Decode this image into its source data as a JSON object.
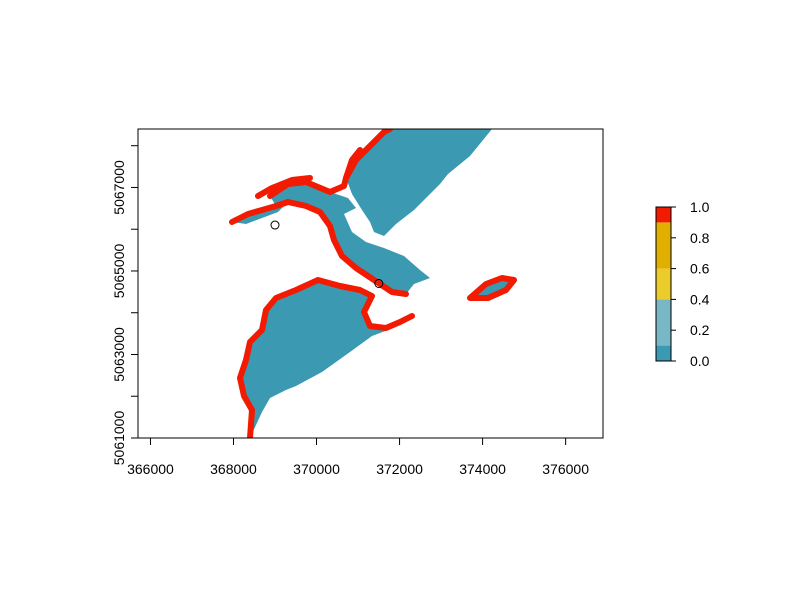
{
  "chart_data": {
    "type": "heatmap",
    "title": "",
    "xlabel": "",
    "ylabel": "",
    "xlim": [
      365700,
      376900
    ],
    "ylim": [
      5061000,
      5068400
    ],
    "x_ticks": [
      366000,
      368000,
      370000,
      372000,
      374000,
      376000
    ],
    "x_tick_labels": [
      "366000",
      "368000",
      "370000",
      "372000",
      "374000",
      "376000"
    ],
    "y_ticks": [
      5061000,
      5062000,
      5063000,
      5064000,
      5065000,
      5066000,
      5067000,
      5068000
    ],
    "y_tick_labels": [
      "5061000",
      "",
      "5063000",
      "",
      "5065000",
      "",
      "5067000",
      ""
    ],
    "grid": false,
    "legend": {
      "placement": "right",
      "range": [
        0.0,
        1.0
      ],
      "ticks": [
        0.0,
        0.2,
        0.4,
        0.6,
        0.8,
        1.0
      ],
      "tick_labels": [
        "0.0",
        "0.2",
        "0.4",
        "0.6",
        "0.8",
        "1.0"
      ],
      "bins": [
        {
          "from": 0.0,
          "to": 0.1,
          "color": "#3b9ab2"
        },
        {
          "from": 0.1,
          "to": 0.4,
          "color": "#78b7c5"
        },
        {
          "from": 0.4,
          "to": 0.6,
          "color": "#ebcc2a"
        },
        {
          "from": 0.6,
          "to": 0.9,
          "color": "#e1af00"
        },
        {
          "from": 0.9,
          "to": 1.0,
          "color": "#f21a00"
        }
      ]
    },
    "points": [
      {
        "x": 369000,
        "y": 5066100
      },
      {
        "x": 371500,
        "y": 5064700
      }
    ]
  },
  "colors": {
    "water": "#3b9ab2",
    "edge": "#f21a00",
    "axis": "#000000"
  }
}
